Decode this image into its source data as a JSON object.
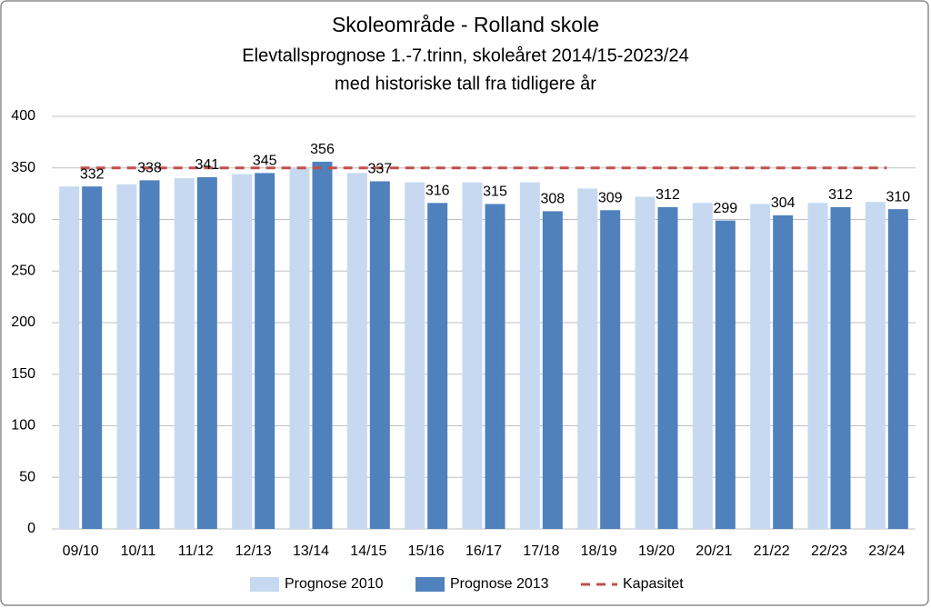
{
  "chart_data": {
    "type": "bar",
    "title": "Skoleområde - Rolland skole",
    "subtitle": [
      "Elevtallsprognose 1.-7.trinn, skoleåret 2014/15-2023/24",
      "med historiske tall fra tidligere år"
    ],
    "categories": [
      "09/10",
      "10/11",
      "11/12",
      "12/13",
      "13/14",
      "14/15",
      "15/16",
      "16/17",
      "17/18",
      "18/19",
      "19/20",
      "20/21",
      "21/22",
      "22/23",
      "23/24"
    ],
    "series": [
      {
        "name": "Prognose 2010",
        "color": "#c6d9f1",
        "values": [
          332,
          334,
          340,
          344,
          350,
          345,
          336,
          336,
          336,
          330,
          322,
          316,
          315,
          316,
          317
        ]
      },
      {
        "name": "Prognose 2013",
        "color": "#4f81bd",
        "values": [
          332,
          338,
          341,
          345,
          356,
          337,
          316,
          315,
          308,
          309,
          312,
          299,
          304,
          312,
          310
        ],
        "data_labels": true
      },
      {
        "name": "Kapasitet",
        "type": "line",
        "color": "#c0504d",
        "dashed": true,
        "values": [
          350,
          350,
          350,
          350,
          350,
          350,
          350,
          350,
          350,
          350,
          350,
          350,
          350,
          350,
          350
        ]
      }
    ],
    "ylim": [
      0,
      400
    ],
    "yticks": [
      0,
      50,
      100,
      150,
      200,
      250,
      300,
      350,
      400
    ],
    "grid": true,
    "legend": "bottom"
  }
}
